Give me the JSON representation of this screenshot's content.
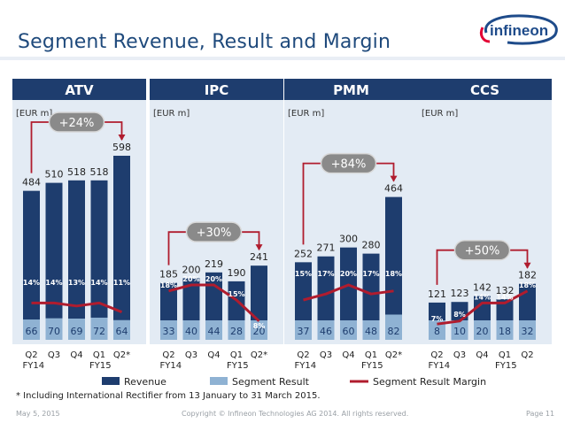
{
  "header": {
    "title": "Segment Revenue, Result and Margin",
    "logo_text": "infineon"
  },
  "colors": {
    "revenue": "#1e3d6e",
    "segment_result": "#8fb2d3",
    "margin_line": "#b01c2e",
    "panel_bg": "#e3ebf4",
    "header_bg": "#1e3d6e"
  },
  "chart_data": [
    {
      "type": "bar",
      "segment": "ATV",
      "unit": "[EUR m]",
      "categories": [
        "Q2",
        "Q3",
        "Q4",
        "Q1",
        "Q2*"
      ],
      "years": [
        "FY14",
        "FY15"
      ],
      "series": [
        {
          "name": "Revenue",
          "values": [
            484,
            510,
            518,
            518,
            598
          ]
        },
        {
          "name": "Segment Result",
          "values": [
            66,
            70,
            69,
            72,
            64
          ]
        },
        {
          "name": "Segment Result Margin",
          "values": [
            "14%",
            "14%",
            "13%",
            "14%",
            "11%"
          ]
        }
      ],
      "growth": "+24%"
    },
    {
      "type": "bar",
      "segment": "IPC",
      "unit": "[EUR m]",
      "categories": [
        "Q2",
        "Q3",
        "Q4",
        "Q1",
        "Q2*"
      ],
      "years": [
        "FY14",
        "FY15"
      ],
      "series": [
        {
          "name": "Revenue",
          "values": [
            185,
            200,
            219,
            190,
            241
          ]
        },
        {
          "name": "Segment Result",
          "values": [
            33,
            40,
            44,
            28,
            20
          ]
        },
        {
          "name": "Segment Result Margin",
          "values": [
            "18%",
            "20%",
            "20%",
            "15%",
            "8%"
          ]
        }
      ],
      "growth": "+30%"
    },
    {
      "type": "bar",
      "segment": "PMM",
      "unit": "[EUR m]",
      "categories": [
        "Q2",
        "Q3",
        "Q4",
        "Q1",
        "Q2*"
      ],
      "years": [
        "FY14",
        "FY15"
      ],
      "series": [
        {
          "name": "Revenue",
          "values": [
            252,
            271,
            300,
            280,
            464
          ]
        },
        {
          "name": "Segment Result",
          "values": [
            37,
            46,
            60,
            48,
            82
          ]
        },
        {
          "name": "Segment Result Margin",
          "values": [
            "15%",
            "17%",
            "20%",
            "17%",
            "18%"
          ]
        }
      ],
      "growth": "+84%"
    },
    {
      "type": "bar",
      "segment": "CCS",
      "unit": "[EUR m]",
      "categories": [
        "Q2",
        "Q3",
        "Q4",
        "Q1",
        "Q2"
      ],
      "years": [
        "FY14",
        "FY15"
      ],
      "series": [
        {
          "name": "Revenue",
          "values": [
            121,
            123,
            142,
            132,
            182
          ]
        },
        {
          "name": "Segment Result",
          "values": [
            8,
            10,
            20,
            18,
            32
          ]
        },
        {
          "name": "Segment Result Margin",
          "values": [
            "7%",
            "8%",
            "14%",
            "14%",
            "18%"
          ]
        }
      ],
      "growth": "+50%"
    }
  ],
  "legend": [
    "Revenue",
    "Segment Result",
    "Segment Result Margin"
  ],
  "footnote": "*  Including International Rectifier from 13 January to 31 March 2015.",
  "footer": {
    "date": "May 5, 2015",
    "copyright": "Copyright © Infineon Technologies AG 2014. All rights reserved.",
    "page": "Page 11"
  }
}
